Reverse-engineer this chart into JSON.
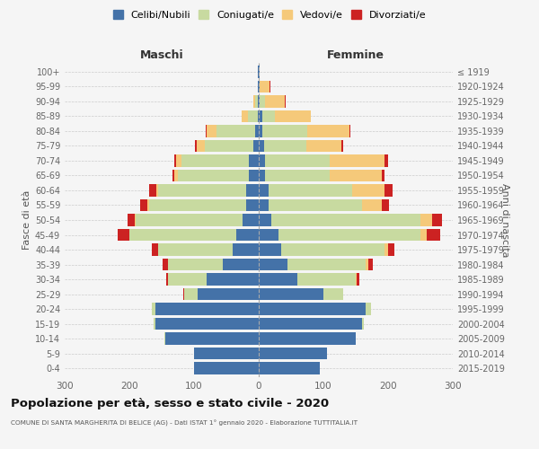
{
  "age_groups": [
    "0-4",
    "5-9",
    "10-14",
    "15-19",
    "20-24",
    "25-29",
    "30-34",
    "35-39",
    "40-44",
    "45-49",
    "50-54",
    "55-59",
    "60-64",
    "65-69",
    "70-74",
    "75-79",
    "80-84",
    "85-89",
    "90-94",
    "95-99",
    "100+"
  ],
  "birth_years": [
    "2015-2019",
    "2010-2014",
    "2005-2009",
    "2000-2004",
    "1995-1999",
    "1990-1994",
    "1985-1989",
    "1980-1984",
    "1975-1979",
    "1970-1974",
    "1965-1969",
    "1960-1964",
    "1955-1959",
    "1950-1954",
    "1945-1949",
    "1940-1944",
    "1935-1939",
    "1930-1934",
    "1925-1929",
    "1920-1924",
    "≤ 1919"
  ],
  "colors": {
    "celibi": "#4472a8",
    "coniugati": "#c8daa0",
    "vedovi": "#f5c97a",
    "divorziati": "#cc2222"
  },
  "males": {
    "celibi": [
      100,
      100,
      145,
      160,
      160,
      95,
      80,
      55,
      40,
      35,
      25,
      20,
      20,
      15,
      15,
      9,
      5,
      2,
      1,
      1,
      1
    ],
    "coniugati": [
      0,
      0,
      1,
      2,
      5,
      20,
      60,
      85,
      115,
      165,
      165,
      150,
      135,
      110,
      105,
      75,
      60,
      15,
      5,
      1,
      0
    ],
    "vedovi": [
      0,
      0,
      0,
      0,
      0,
      0,
      0,
      0,
      0,
      0,
      1,
      2,
      4,
      5,
      8,
      12,
      15,
      10,
      3,
      0,
      0
    ],
    "divorziati": [
      0,
      0,
      0,
      0,
      0,
      1,
      3,
      8,
      10,
      18,
      12,
      12,
      10,
      4,
      3,
      2,
      2,
      0,
      0,
      0,
      0
    ]
  },
  "females": {
    "celibi": [
      95,
      105,
      150,
      160,
      165,
      100,
      60,
      45,
      35,
      30,
      20,
      15,
      15,
      10,
      10,
      8,
      5,
      5,
      2,
      1,
      1
    ],
    "coniugati": [
      0,
      0,
      0,
      2,
      8,
      30,
      90,
      120,
      160,
      220,
      230,
      145,
      130,
      100,
      100,
      65,
      70,
      20,
      8,
      1,
      0
    ],
    "vedovi": [
      0,
      0,
      0,
      0,
      0,
      0,
      2,
      4,
      5,
      10,
      18,
      30,
      50,
      80,
      85,
      55,
      65,
      55,
      30,
      15,
      1
    ],
    "divorziati": [
      0,
      0,
      0,
      0,
      0,
      1,
      4,
      8,
      10,
      20,
      15,
      12,
      12,
      5,
      5,
      2,
      2,
      1,
      1,
      1,
      0
    ]
  },
  "title": "Popolazione per età, sesso e stato civile - 2020",
  "subtitle": "COMUNE DI SANTA MARGHERITA DI BELICE (AG) - Dati ISTAT 1° gennaio 2020 - Elaborazione TUTTITALIA.IT",
  "xlabel_left": "Maschi",
  "xlabel_right": "Femmine",
  "ylabel_left": "Fasce di età",
  "ylabel_right": "Anni di nascita",
  "xlim": 300,
  "bg_color": "#f5f5f5",
  "grid_color": "#cccccc",
  "legend_labels": [
    "Celibi/Nubili",
    "Coniugati/e",
    "Vedovi/e",
    "Divorziati/e"
  ]
}
